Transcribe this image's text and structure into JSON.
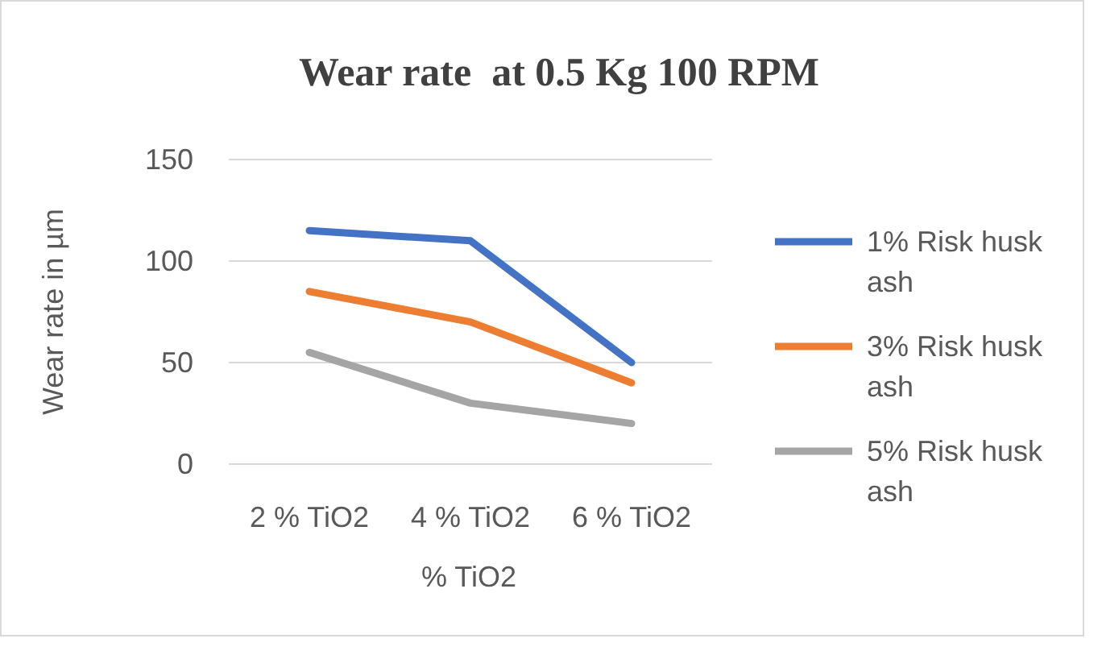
{
  "chart_data": {
    "type": "line",
    "title": "Wear rate  at 0.5 Kg 100 RPM",
    "xlabel": "% TiO2",
    "ylabel": "Wear rate in µm",
    "categories": [
      "2 % TiO2",
      "4 % TiO2",
      "6 % TiO2"
    ],
    "series": [
      {
        "name": "1% Risk husk ash",
        "color": "#4472c4",
        "values": [
          115,
          110,
          50
        ]
      },
      {
        "name": "3% Risk husk ash",
        "color": "#ed7d31",
        "values": [
          85,
          70,
          40
        ]
      },
      {
        "name": "5% Risk husk ash",
        "color": "#a5a5a5",
        "values": [
          55,
          30,
          20
        ]
      }
    ],
    "ylim": [
      0,
      150
    ],
    "yticks": [
      0,
      50,
      100,
      150
    ],
    "grid": "y",
    "legend": "right",
    "marker": "none",
    "line_style": "solid"
  }
}
